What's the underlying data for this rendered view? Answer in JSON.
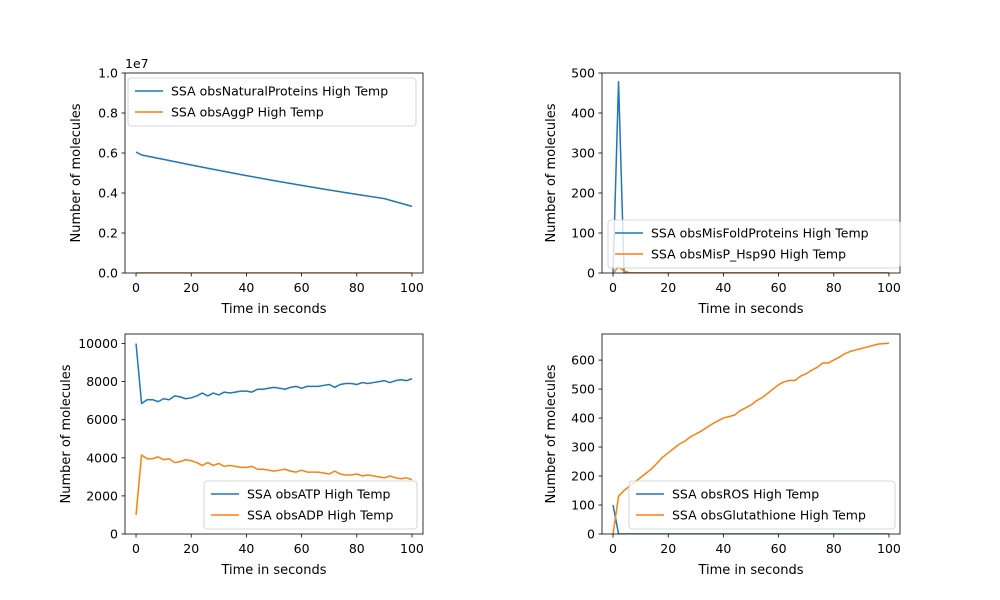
{
  "colors": {
    "blue": "#1f77b4",
    "orange": "#ff7f0e"
  },
  "chart_data": [
    {
      "type": "line",
      "xlabel": "Time in seconds",
      "ylabel": "Number of molecules",
      "xlim": [
        -4,
        104
      ],
      "ylim": [
        0,
        10000000
      ],
      "xticks": [
        0,
        20,
        40,
        60,
        80,
        100
      ],
      "yticks": [
        0,
        2000000,
        4000000,
        6000000,
        8000000,
        10000000
      ],
      "ytick_labels": [
        "0.0",
        "0.2",
        "0.4",
        "0.6",
        "0.8",
        "1.0"
      ],
      "offset_text": "1e7",
      "legend_loc": "upper-left",
      "series": [
        {
          "name": "SSA obsNaturalProteins High Temp",
          "color": "#1f77b4",
          "x": [
            0,
            2,
            10,
            20,
            30,
            40,
            50,
            60,
            70,
            80,
            90,
            100
          ],
          "y": [
            6050000,
            5900000,
            5680000,
            5400000,
            5130000,
            4870000,
            4620000,
            4380000,
            4150000,
            3930000,
            3720000,
            3330000
          ]
        },
        {
          "name": "SSA obsAggP High Temp",
          "color": "#ff7f0e",
          "x": [
            0,
            100
          ],
          "y": [
            0,
            0
          ]
        }
      ]
    },
    {
      "type": "line",
      "xlabel": "Time in seconds",
      "ylabel": "Number of molecules",
      "xlim": [
        -4,
        104
      ],
      "ylim": [
        0,
        500
      ],
      "xticks": [
        0,
        20,
        40,
        60,
        80,
        100
      ],
      "yticks": [
        0,
        100,
        200,
        300,
        400,
        500
      ],
      "ytick_labels": [
        "0",
        "100",
        "200",
        "300",
        "400",
        "500"
      ],
      "legend_loc": "lower-right",
      "series": [
        {
          "name": "SSA obsMisFoldProteins High Temp",
          "color": "#1f77b4",
          "x": [
            0,
            2,
            4,
            6,
            100
          ],
          "y": [
            0,
            478,
            0,
            0,
            0
          ]
        },
        {
          "name": "SSA obsMisP_Hsp90 High Temp",
          "color": "#ff7f0e",
          "x": [
            0,
            2,
            4,
            6,
            100
          ],
          "y": [
            0,
            15,
            5,
            0,
            0
          ]
        }
      ]
    },
    {
      "type": "line",
      "xlabel": "Time in seconds",
      "ylabel": "Number of molecules",
      "xlim": [
        -4,
        104
      ],
      "ylim": [
        0,
        10500
      ],
      "xticks": [
        0,
        20,
        40,
        60,
        80,
        100
      ],
      "yticks": [
        0,
        2000,
        4000,
        6000,
        8000,
        10000
      ],
      "ytick_labels": [
        "0",
        "2000",
        "4000",
        "6000",
        "8000",
        "10000"
      ],
      "legend_loc": "lower-right",
      "series": [
        {
          "name": "SSA obsATP High Temp",
          "color": "#1f77b4",
          "x": [
            0,
            2,
            4,
            6,
            8,
            10,
            12,
            14,
            16,
            18,
            20,
            22,
            24,
            26,
            28,
            30,
            32,
            34,
            36,
            38,
            40,
            42,
            44,
            46,
            48,
            50,
            52,
            54,
            56,
            58,
            60,
            62,
            64,
            66,
            68,
            70,
            72,
            74,
            76,
            78,
            80,
            82,
            84,
            86,
            88,
            90,
            92,
            94,
            96,
            98,
            100
          ],
          "y": [
            10000,
            6850,
            7050,
            7050,
            6950,
            7100,
            7050,
            7250,
            7200,
            7100,
            7150,
            7250,
            7400,
            7250,
            7400,
            7300,
            7450,
            7400,
            7450,
            7500,
            7500,
            7450,
            7600,
            7600,
            7650,
            7700,
            7650,
            7600,
            7700,
            7750,
            7650,
            7750,
            7750,
            7750,
            7800,
            7850,
            7700,
            7850,
            7900,
            7900,
            7850,
            7950,
            7900,
            7950,
            8000,
            8050,
            7950,
            8050,
            8100,
            8050,
            8150
          ]
        },
        {
          "name": "SSA obsADP High Temp",
          "color": "#ff7f0e",
          "x": [
            0,
            2,
            4,
            6,
            8,
            10,
            12,
            14,
            16,
            18,
            20,
            22,
            24,
            26,
            28,
            30,
            32,
            34,
            36,
            38,
            40,
            42,
            44,
            46,
            48,
            50,
            52,
            54,
            56,
            58,
            60,
            62,
            64,
            66,
            68,
            70,
            72,
            74,
            76,
            78,
            80,
            82,
            84,
            86,
            88,
            90,
            92,
            94,
            96,
            98,
            100
          ],
          "y": [
            1000,
            4150,
            3950,
            3950,
            4050,
            3900,
            3950,
            3750,
            3800,
            3900,
            3850,
            3750,
            3600,
            3750,
            3600,
            3700,
            3550,
            3600,
            3550,
            3500,
            3500,
            3550,
            3400,
            3400,
            3350,
            3300,
            3350,
            3400,
            3300,
            3250,
            3350,
            3250,
            3250,
            3250,
            3200,
            3150,
            3300,
            3150,
            3100,
            3100,
            3150,
            3050,
            3100,
            3050,
            3000,
            2950,
            3050,
            2950,
            2900,
            2950,
            2850
          ]
        }
      ]
    },
    {
      "type": "line",
      "xlabel": "Time in seconds",
      "ylabel": "Number of molecules",
      "xlim": [
        -4,
        104
      ],
      "ylim": [
        0,
        690
      ],
      "xticks": [
        0,
        20,
        40,
        60,
        80,
        100
      ],
      "yticks": [
        0,
        100,
        200,
        300,
        400,
        500,
        600
      ],
      "ytick_labels": [
        "0",
        "100",
        "200",
        "300",
        "400",
        "500",
        "600"
      ],
      "legend_loc": "lower-right",
      "series": [
        {
          "name": "SSA obsROS High Temp",
          "color": "#1f77b4",
          "x": [
            0,
            2,
            4,
            100
          ],
          "y": [
            100,
            0,
            0,
            0
          ]
        },
        {
          "name": "SSA obsGlutathione High Temp",
          "color": "#ff7f0e",
          "x": [
            0,
            2,
            4,
            6,
            8,
            10,
            12,
            14,
            16,
            18,
            20,
            22,
            24,
            26,
            28,
            30,
            32,
            34,
            36,
            38,
            40,
            42,
            44,
            46,
            48,
            50,
            52,
            54,
            56,
            58,
            60,
            62,
            64,
            66,
            68,
            70,
            72,
            74,
            76,
            78,
            80,
            82,
            84,
            86,
            88,
            90,
            92,
            94,
            96,
            98,
            100
          ],
          "y": [
            0,
            130,
            150,
            165,
            180,
            195,
            210,
            225,
            245,
            265,
            280,
            295,
            310,
            320,
            335,
            345,
            355,
            368,
            380,
            390,
            400,
            405,
            410,
            425,
            435,
            445,
            460,
            470,
            485,
            500,
            515,
            525,
            530,
            530,
            545,
            553,
            565,
            575,
            590,
            590,
            600,
            610,
            622,
            630,
            635,
            640,
            645,
            650,
            655,
            657,
            658
          ]
        }
      ]
    }
  ]
}
